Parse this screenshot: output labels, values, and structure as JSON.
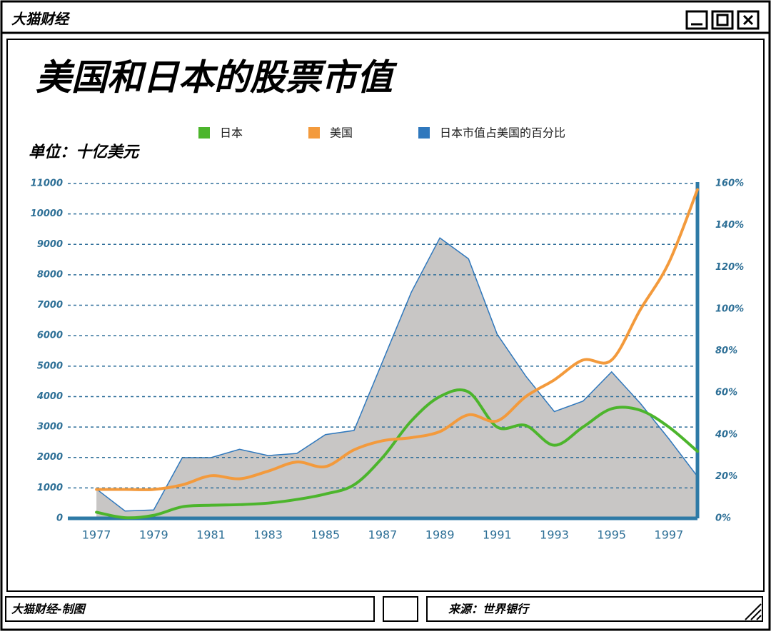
{
  "window": {
    "title": "大猫财经"
  },
  "chart_data": {
    "type": "line",
    "title": "美国和日本的股票市值",
    "subtitle": "单位：十亿美元",
    "x": [
      1977,
      1978,
      1979,
      1980,
      1981,
      1982,
      1983,
      1984,
      1985,
      1986,
      1987,
      1988,
      1989,
      1990,
      1991,
      1992,
      1993,
      1994,
      1995,
      1996,
      1997,
      1998
    ],
    "xlim": [
      1976,
      1998
    ],
    "xticks": [
      1977,
      1979,
      1981,
      1983,
      1985,
      1987,
      1989,
      1991,
      1993,
      1995,
      1997
    ],
    "ylim": [
      0,
      11000
    ],
    "yticks": [
      0,
      1000,
      2000,
      3000,
      4000,
      5000,
      6000,
      7000,
      8000,
      9000,
      10000,
      11000
    ],
    "y2lim": [
      0,
      160
    ],
    "y2ticks": [
      {
        "value": 0,
        "label": "0%"
      },
      {
        "value": 20,
        "label": "20%"
      },
      {
        "value": 40,
        "label": "40%"
      },
      {
        "value": 60,
        "label": "60%"
      },
      {
        "value": 80,
        "label": "80%"
      },
      {
        "value": 100,
        "label": "100%"
      },
      {
        "value": 120,
        "label": "120%"
      },
      {
        "value": 140,
        "label": "140%"
      },
      {
        "value": 160,
        "label": "160%"
      }
    ],
    "grid": true,
    "series": [
      {
        "name": "日本",
        "color": "#4cb52c",
        "values": [
          200,
          20,
          100,
          380,
          430,
          450,
          500,
          620,
          800,
          1100,
          2000,
          3200,
          4000,
          4150,
          3000,
          3050,
          2400,
          3000,
          3600,
          3550,
          3000,
          2200
        ]
      },
      {
        "name": "美国",
        "color": "#f39a3c",
        "values": [
          950,
          950,
          950,
          1100,
          1400,
          1300,
          1550,
          1850,
          1700,
          2250,
          2550,
          2650,
          2850,
          3400,
          3200,
          4000,
          4550,
          5200,
          5200,
          6850,
          8400,
          10800
        ]
      },
      {
        "name": "日本市值占美国的百分比",
        "color": "#2f78bd",
        "axis": "y2",
        "values": [
          14,
          3.5,
          4,
          29,
          29,
          33,
          30,
          31,
          40,
          42,
          75,
          108,
          134,
          124,
          88,
          68,
          51,
          56,
          70,
          55,
          38,
          20
        ]
      }
    ]
  },
  "footer": {
    "left": "大猫财经-制图",
    "right": "来源：世界银行"
  }
}
